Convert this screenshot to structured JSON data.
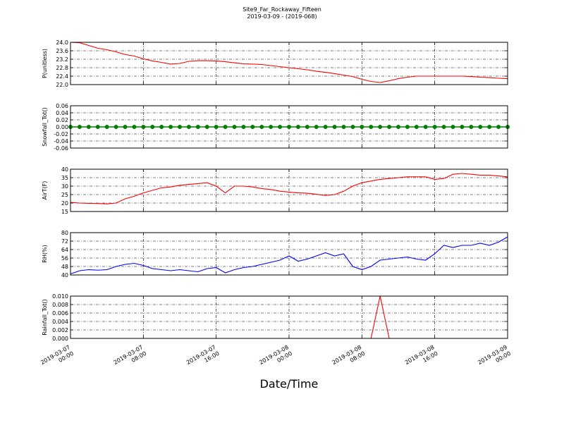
{
  "figure": {
    "title": "Site9_Far_Rockaway_Fifteen",
    "subtitle": "2019-03-09 - (2019-068)",
    "xlabel": "Date/Time",
    "xlim": [
      "2019-03-07 00:00",
      "2019-03-09 00:00"
    ],
    "xticks": [
      "2019-03-07 00:00",
      "2019-03-07 08:00",
      "2019-03-07 16:00",
      "2019-03-08 00:00",
      "2019-03-08 08:00",
      "2019-03-08 16:00",
      "2019-03-09 00:00"
    ],
    "x": [
      "2019-03-07 00:00",
      "2019-03-07 01:00",
      "2019-03-07 02:00",
      "2019-03-07 03:00",
      "2019-03-07 04:00",
      "2019-03-07 05:00",
      "2019-03-07 06:00",
      "2019-03-07 07:00",
      "2019-03-07 08:00",
      "2019-03-07 09:00",
      "2019-03-07 10:00",
      "2019-03-07 11:00",
      "2019-03-07 12:00",
      "2019-03-07 13:00",
      "2019-03-07 14:00",
      "2019-03-07 15:00",
      "2019-03-07 16:00",
      "2019-03-07 17:00",
      "2019-03-07 18:00",
      "2019-03-07 19:00",
      "2019-03-07 20:00",
      "2019-03-07 21:00",
      "2019-03-07 22:00",
      "2019-03-07 23:00",
      "2019-03-08 00:00",
      "2019-03-08 01:00",
      "2019-03-08 02:00",
      "2019-03-08 03:00",
      "2019-03-08 04:00",
      "2019-03-08 05:00",
      "2019-03-08 06:00",
      "2019-03-08 07:00",
      "2019-03-08 08:00",
      "2019-03-08 09:00",
      "2019-03-08 10:00",
      "2019-03-08 11:00",
      "2019-03-08 12:00",
      "2019-03-08 13:00",
      "2019-03-08 14:00",
      "2019-03-08 15:00",
      "2019-03-08 16:00",
      "2019-03-08 17:00",
      "2019-03-08 18:00",
      "2019-03-08 19:00",
      "2019-03-08 20:00",
      "2019-03-08 21:00",
      "2019-03-08 22:00",
      "2019-03-08 23:00",
      "2019-03-09 00:00"
    ]
  },
  "chart_data": [
    {
      "type": "line",
      "ylabel": "P(unitless)",
      "color": "#ff0000",
      "grid": true,
      "ylim": [
        22.0,
        24.0
      ],
      "yticks": [
        {
          "value": 22.0,
          "label": "22.0"
        },
        {
          "value": 22.4,
          "label": "22.4"
        },
        {
          "value": 22.8,
          "label": "22.8"
        },
        {
          "value": 23.2,
          "label": "23.2"
        },
        {
          "value": 23.6,
          "label": "23.6"
        },
        {
          "value": 24.0,
          "label": "24.0"
        }
      ],
      "values": [
        24.0,
        23.98,
        23.85,
        23.72,
        23.65,
        23.55,
        23.42,
        23.35,
        23.22,
        23.12,
        23.05,
        22.97,
        23.0,
        23.1,
        23.13,
        23.13,
        23.12,
        23.08,
        23.03,
        22.98,
        22.97,
        22.95,
        22.9,
        22.85,
        22.8,
        22.75,
        22.7,
        22.63,
        22.58,
        22.52,
        22.45,
        22.38,
        22.25,
        22.15,
        22.1,
        22.18,
        22.28,
        22.35,
        22.4,
        22.4,
        22.4,
        22.4,
        22.4,
        22.4,
        22.38,
        22.35,
        22.33,
        22.3,
        22.28
      ]
    },
    {
      "type": "line",
      "ylabel": "Snowfall_Tot()",
      "color": "#008000",
      "marker": true,
      "grid": true,
      "ylim": [
        -0.06,
        0.06
      ],
      "yticks": [
        {
          "value": -0.06,
          "label": "-0.06"
        },
        {
          "value": -0.04,
          "label": "-0.04"
        },
        {
          "value": -0.02,
          "label": "-0.02"
        },
        {
          "value": 0,
          "label": "0.00"
        },
        {
          "value": 0.02,
          "label": "0.02"
        },
        {
          "value": 0.04,
          "label": "0.04"
        },
        {
          "value": 0.06,
          "label": "0.06"
        }
      ],
      "values": [
        0,
        0,
        0,
        0,
        0,
        0,
        0,
        0,
        0,
        0,
        0,
        0,
        0,
        0,
        0,
        0,
        0,
        0,
        0,
        0,
        0,
        0,
        0,
        0,
        0,
        0,
        0,
        0,
        0,
        0,
        0,
        0,
        0,
        0,
        0,
        0,
        0,
        0,
        0,
        0,
        0,
        0,
        0,
        0,
        0,
        0,
        0,
        0,
        0
      ]
    },
    {
      "type": "line",
      "ylabel": "AirT(F)",
      "color": "#ff0000",
      "grid": true,
      "ylim": [
        15,
        40
      ],
      "yticks": [
        15,
        20,
        25,
        30,
        35,
        40
      ],
      "values": [
        20.4,
        20,
        19.8,
        19.7,
        19.5,
        20,
        22.5,
        24,
        26,
        27.5,
        29,
        29.5,
        30.5,
        31,
        31.5,
        32,
        30,
        26,
        30,
        30,
        29.5,
        28.5,
        28,
        27,
        26.5,
        26,
        25.8,
        25.2,
        24.5,
        25,
        27,
        30,
        32,
        33,
        34,
        34.5,
        35,
        35.5,
        35.5,
        35.5,
        34,
        34.5,
        37,
        37.5,
        37,
        36.5,
        36.5,
        36,
        35.5
      ]
    },
    {
      "type": "line",
      "ylabel": "RH(%)",
      "color": "#0000ff",
      "grid": true,
      "ylim": [
        40,
        80
      ],
      "yticks": [
        40,
        48,
        56,
        64,
        72,
        80
      ],
      "values": [
        41,
        44,
        45,
        44.5,
        45,
        48,
        50,
        51,
        49,
        46,
        45,
        44,
        45,
        44,
        43,
        46,
        47,
        42,
        45,
        47,
        48,
        50,
        52,
        54,
        58,
        53,
        55,
        58,
        61,
        58,
        60,
        48,
        45,
        48,
        54,
        55,
        56,
        57,
        55,
        54,
        60,
        68,
        66,
        68,
        68,
        70,
        68,
        71,
        76
      ]
    },
    {
      "type": "line",
      "ylabel": "Rainfall_Tot()",
      "color": "#ff0000",
      "grid": true,
      "ylim": [
        0,
        0.01
      ],
      "yticks": [
        {
          "value": 0,
          "label": "0.000"
        },
        {
          "value": 0.002,
          "label": "0.002"
        },
        {
          "value": 0.004,
          "label": "0.004"
        },
        {
          "value": 0.006,
          "label": "0.006"
        },
        {
          "value": 0.008,
          "label": "0.008"
        },
        {
          "value": 0.01,
          "label": "0.010"
        }
      ],
      "values": [
        0,
        0,
        0,
        0,
        0,
        0,
        0,
        0,
        0,
        0,
        0,
        0,
        0,
        0,
        0,
        0,
        0,
        0,
        0,
        0,
        0,
        0,
        0,
        0,
        0,
        0,
        0,
        0,
        0,
        0,
        0,
        0,
        0,
        0,
        0.01,
        0,
        0,
        0,
        0,
        0,
        0,
        0,
        0,
        0,
        0,
        0,
        0,
        0,
        0
      ]
    }
  ]
}
